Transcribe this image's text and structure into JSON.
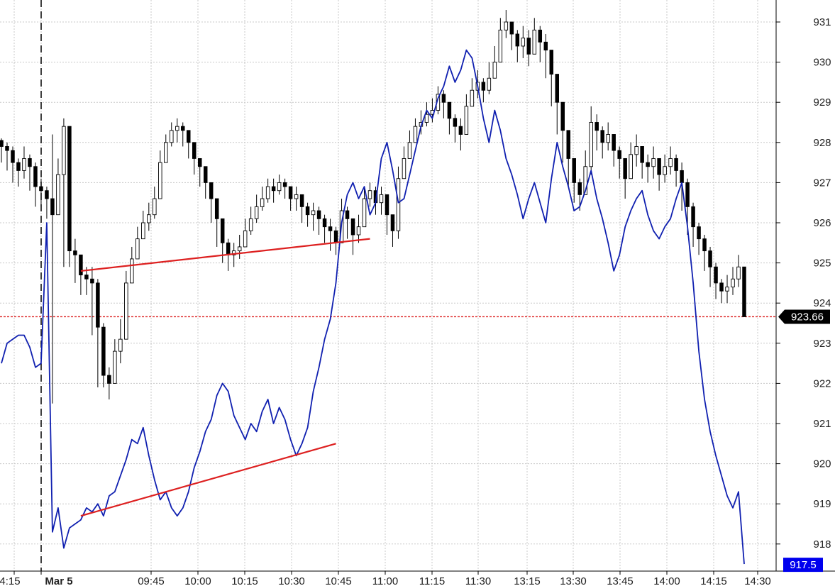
{
  "chart_data": {
    "type": "line",
    "title": "",
    "xlabel": "",
    "ylabel": "",
    "ylim": [
      917.4,
      931.5
    ],
    "y_ticks": [
      918,
      919,
      920,
      921,
      922,
      923,
      924,
      925,
      926,
      927,
      928,
      929,
      930,
      931
    ],
    "x_tick_labels": [
      "4:15",
      "Mar 5",
      "09:45",
      "10:00",
      "10:15",
      "10:30",
      "10:45",
      "11:00",
      "11:15",
      "11:30",
      "13:15",
      "13:30",
      "13:45",
      "14:00",
      "14:15",
      "14:30"
    ],
    "x_tick_bold": "Mar 5",
    "grid": true,
    "legend": "none",
    "series": [
      {
        "kind": "candlestick",
        "color": "#000000",
        "close": [
          927.9,
          927.8,
          927.5,
          927.3,
          927.6,
          927.4,
          926.9,
          926.8,
          926.6,
          926.2,
          927.2,
          928.4,
          925.3,
          925.2,
          924.7,
          924.6,
          924.5,
          923.4,
          922.2,
          922.0,
          922.8,
          923.1,
          924.5,
          925.1,
          925.6,
          926.0,
          926.2,
          926.6,
          927.5,
          928.0,
          928.3,
          928.4,
          928.3,
          928.0,
          927.6,
          927.4,
          927.0,
          926.6,
          926.1,
          925.5,
          925.2,
          925.3,
          925.4,
          925.8,
          926.1,
          926.4,
          926.6,
          926.9,
          926.8,
          927.0,
          926.9,
          926.6,
          926.7,
          926.4,
          926.2,
          926.3,
          926.1,
          925.9,
          925.8,
          925.5,
          926.3,
          926.1,
          925.7,
          925.9,
          926.6,
          926.8,
          926.5,
          926.7,
          926.2,
          925.8,
          927.1,
          927.6,
          928.0,
          928.4,
          928.5,
          928.7,
          928.8,
          929.2,
          929.0,
          928.6,
          928.4,
          928.2,
          928.9,
          929.3,
          929.5,
          929.3,
          929.6,
          930.0,
          930.8,
          931.0,
          930.7,
          930.4,
          930.6,
          930.2,
          930.8,
          930.5,
          930.3,
          929.7,
          929.0,
          928.3,
          927.6,
          927.0,
          926.7,
          927.4,
          928.5,
          928.3,
          928.0,
          928.2,
          927.8,
          927.6,
          927.1,
          927.7,
          927.9,
          927.5,
          927.4,
          927.6,
          927.2,
          927.4,
          927.6,
          927.3,
          927.0,
          926.4,
          925.9,
          925.6,
          925.3,
          924.9,
          924.5,
          924.3,
          924.4,
          924.6,
          924.9,
          923.66
        ],
        "high": [
          928.1,
          928.0,
          927.9,
          927.6,
          927.9,
          927.7,
          927.5,
          927.1,
          926.9,
          928.2,
          927.6,
          928.6,
          925.6,
          925.6,
          925.0,
          924.9,
          924.9,
          924.6,
          923.5,
          922.4,
          923.1,
          923.6,
          924.8,
          925.4,
          925.9,
          926.3,
          926.5,
          926.9,
          927.8,
          928.2,
          928.5,
          928.6,
          928.5,
          928.3,
          928.0,
          927.6,
          927.4,
          927.0,
          926.6,
          926.1,
          925.6,
          925.5,
          925.7,
          926.1,
          926.4,
          926.7,
          926.9,
          927.1,
          927.1,
          927.2,
          927.1,
          926.9,
          926.9,
          926.7,
          926.5,
          926.5,
          926.4,
          926.2,
          926.1,
          925.9,
          926.6,
          926.4,
          926.0,
          926.2,
          926.9,
          927.0,
          926.9,
          926.9,
          926.6,
          926.2,
          927.4,
          927.9,
          928.3,
          928.6,
          928.8,
          929.0,
          929.1,
          929.4,
          929.3,
          928.9,
          928.7,
          928.6,
          929.2,
          929.6,
          929.8,
          929.6,
          930.0,
          930.4,
          931.1,
          931.3,
          931.0,
          930.8,
          930.9,
          930.8,
          931.1,
          930.9,
          930.7,
          930.3,
          929.5,
          928.9,
          928.2,
          927.4,
          927.1,
          927.8,
          928.9,
          928.7,
          928.4,
          928.5,
          928.2,
          927.9,
          927.6,
          928.0,
          928.2,
          927.9,
          927.7,
          927.9,
          927.6,
          927.7,
          927.9,
          927.7,
          927.5,
          927.1,
          926.5,
          926.0,
          925.7,
          925.4,
          925.0,
          924.6,
          924.7,
          924.9,
          925.2,
          924.4
        ],
        "low": [
          927.5,
          927.3,
          927.0,
          926.9,
          927.1,
          926.8,
          926.4,
          926.4,
          926.1,
          921.5,
          926.2,
          924.9,
          924.9,
          924.5,
          924.2,
          924.2,
          923.2,
          921.9,
          921.9,
          921.6,
          922.0,
          922.5,
          923.3,
          924.7,
          925.1,
          925.6,
          925.8,
          926.1,
          926.7,
          927.6,
          927.9,
          928.0,
          927.9,
          927.6,
          927.2,
          926.9,
          926.6,
          926.0,
          925.4,
          925.0,
          924.8,
          924.9,
          925.1,
          925.4,
          925.7,
          926.0,
          926.3,
          926.5,
          926.5,
          926.7,
          926.6,
          926.3,
          926.3,
          926.0,
          925.9,
          925.8,
          925.7,
          925.5,
          925.3,
          925.2,
          925.8,
          925.6,
          925.2,
          925.5,
          926.2,
          926.4,
          926.2,
          926.2,
          925.7,
          925.4,
          925.6,
          927.2,
          927.7,
          928.0,
          928.2,
          928.4,
          928.5,
          928.7,
          928.6,
          928.2,
          928.0,
          927.8,
          928.4,
          928.9,
          929.1,
          929.0,
          929.2,
          929.7,
          930.3,
          930.6,
          930.3,
          930.0,
          930.1,
          929.9,
          930.3,
          930.0,
          929.6,
          928.9,
          928.2,
          927.5,
          926.9,
          926.5,
          926.3,
          926.9,
          927.2,
          927.8,
          927.6,
          927.8,
          927.4,
          927.1,
          926.6,
          927.2,
          927.4,
          927.1,
          927.0,
          927.1,
          926.8,
          927.0,
          927.2,
          926.9,
          926.3,
          925.7,
          925.4,
          925.2,
          924.8,
          924.4,
          924.1,
          924.0,
          924.0,
          924.2,
          924.4,
          923.66
        ]
      },
      {
        "kind": "line",
        "color": "#1020b0",
        "values": [
          922.5,
          923.0,
          923.1,
          923.2,
          923.2,
          922.9,
          922.4,
          922.5,
          926.0,
          918.3,
          918.9,
          917.9,
          918.4,
          918.5,
          918.6,
          918.9,
          918.8,
          919.0,
          918.7,
          919.2,
          919.3,
          919.7,
          920.1,
          920.6,
          920.5,
          920.9,
          920.2,
          919.6,
          919.1,
          919.3,
          918.9,
          918.7,
          918.9,
          919.3,
          919.9,
          920.3,
          920.8,
          921.1,
          921.7,
          922.0,
          921.8,
          921.2,
          920.9,
          920.6,
          921.0,
          920.8,
          921.3,
          921.6,
          921.0,
          921.4,
          921.1,
          920.6,
          920.2,
          920.5,
          920.9,
          921.8,
          922.4,
          923.1,
          923.6,
          924.5,
          926.0,
          926.7,
          927.0,
          926.6,
          926.9,
          926.2,
          926.5,
          927.6,
          928.0,
          927.3,
          926.5,
          926.6,
          927.2,
          927.8,
          928.4,
          928.8,
          928.6,
          929.1,
          929.4,
          929.9,
          929.5,
          929.8,
          930.3,
          930.1,
          929.4,
          928.6,
          928.0,
          928.8,
          928.3,
          927.6,
          927.2,
          926.7,
          926.1,
          926.6,
          927.0,
          926.5,
          926.0,
          927.1,
          928.0,
          927.4,
          926.9,
          926.3,
          926.4,
          926.8,
          927.3,
          926.6,
          926.1,
          925.5,
          924.8,
          925.2,
          925.9,
          926.3,
          926.6,
          926.8,
          926.2,
          925.8,
          925.6,
          925.9,
          926.1,
          926.6,
          927.0,
          925.9,
          924.5,
          922.8,
          921.6,
          920.8,
          920.2,
          919.7,
          919.2,
          918.9,
          919.3,
          917.5
        ]
      }
    ],
    "price_badge": {
      "value": "923.66",
      "color": "#000000"
    },
    "line_badge": {
      "value": "917.5",
      "color": "#0000ee"
    },
    "price_hline": {
      "y": 923.66,
      "color": "#dd2020"
    },
    "trendlines": [
      {
        "color": "#dd2020",
        "from_idx": 14,
        "from_y": 924.8,
        "to_idx": 65,
        "to_y": 925.6
      },
      {
        "color": "#dd2020",
        "from_idx": 14,
        "from_y": 918.7,
        "to_idx": 59,
        "to_y": 920.5
      }
    ]
  }
}
